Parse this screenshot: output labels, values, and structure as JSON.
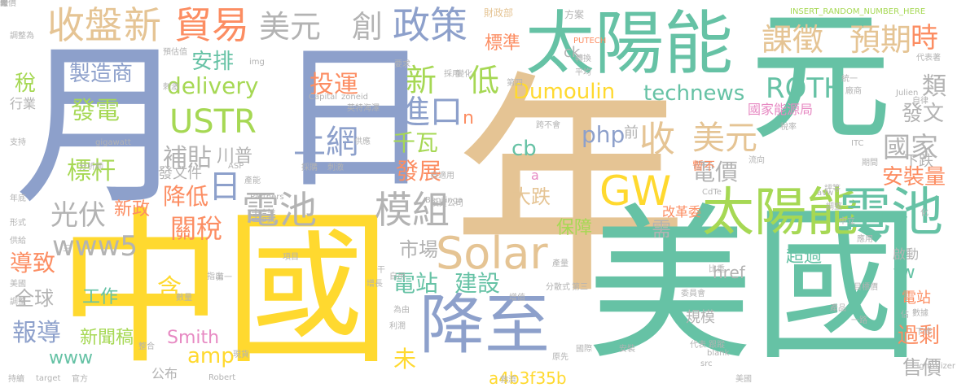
{
  "palette": {
    "blue": "#8DA0CB",
    "green": "#66C2A5",
    "yellow": "#FFD92F",
    "tan": "#E5C494",
    "pink": "#E78AC3",
    "orange": "#FC8D62",
    "lime": "#A6D854",
    "gray": "#B3B3B3"
  },
  "words": [
    {
      "text": "年",
      "color": "tan"
    },
    {
      "text": "中國",
      "color": "yellow"
    },
    {
      "text": "美國",
      "color": "green"
    },
    {
      "text": "月",
      "color": "blue"
    },
    {
      "text": "日",
      "color": "blue"
    },
    {
      "text": "元",
      "color": "green"
    },
    {
      "text": "太陽能",
      "color": "green"
    },
    {
      "text": "降至",
      "color": "blue"
    },
    {
      "text": "太陽能",
      "color": "lime"
    },
    {
      "text": "電池",
      "color": "green"
    },
    {
      "text": "Solar",
      "color": "tan"
    },
    {
      "text": "GW",
      "color": "yellow"
    },
    {
      "text": "收盤",
      "color": "tan"
    },
    {
      "text": "新",
      "color": "tan"
    },
    {
      "text": "貿易",
      "color": "orange"
    },
    {
      "text": "美元",
      "color": "gray"
    },
    {
      "text": "創",
      "color": "gray"
    },
    {
      "text": "政策",
      "color": "blue"
    },
    {
      "text": "課徵",
      "color": "tan"
    },
    {
      "text": "預期",
      "color": "tan"
    },
    {
      "text": "時",
      "color": "orange"
    },
    {
      "text": "電池",
      "color": "gray"
    },
    {
      "text": "模組",
      "color": "gray"
    },
    {
      "text": "日",
      "color": "blue"
    },
    {
      "text": "上網",
      "color": "blue"
    },
    {
      "text": "USTR",
      "color": "lime"
    },
    {
      "text": "光伏",
      "color": "gray"
    },
    {
      "text": "收",
      "color": "tan"
    },
    {
      "text": "美元",
      "color": "tan"
    },
    {
      "text": "進口",
      "color": "blue"
    },
    {
      "text": "新",
      "color": "lime"
    },
    {
      "text": "低",
      "color": "lime"
    },
    {
      "text": "ROTH",
      "color": "green"
    },
    {
      "text": "國家",
      "color": "gray"
    },
    {
      "text": "www5",
      "color": "gray"
    },
    {
      "text": "關稅",
      "color": "orange"
    },
    {
      "text": "發電",
      "color": "lime"
    },
    {
      "text": "標杆",
      "color": "lime"
    },
    {
      "text": "補貼",
      "color": "gray"
    },
    {
      "text": "川普",
      "color": "gray"
    },
    {
      "text": "製造商",
      "color": "blue"
    },
    {
      "text": "安排",
      "color": "green"
    },
    {
      "text": "delivery",
      "color": "lime"
    },
    {
      "text": "投運",
      "color": "orange"
    },
    {
      "text": "Dumoulin",
      "color": "yellow"
    },
    {
      "text": "technews",
      "color": "green"
    },
    {
      "text": "php",
      "color": "blue"
    },
    {
      "text": "cb",
      "color": "green"
    },
    {
      "text": "前",
      "color": "gray"
    },
    {
      "text": "千瓦",
      "color": "lime"
    },
    {
      "text": "發展",
      "color": "orange"
    },
    {
      "text": "電價",
      "color": "gray"
    },
    {
      "text": "暫不",
      "color": "orange"
    },
    {
      "text": "國家能源局",
      "color": "pink"
    },
    {
      "text": "發文",
      "color": "gray"
    },
    {
      "text": "下跌",
      "color": "gray"
    },
    {
      "text": "安裝量",
      "color": "orange"
    },
    {
      "text": "類",
      "color": "gray"
    },
    {
      "text": "標準",
      "color": "orange"
    },
    {
      "text": "ck",
      "color": "gray"
    },
    {
      "text": "稅",
      "color": "lime"
    },
    {
      "text": "行業",
      "color": "gray"
    },
    {
      "text": "降低",
      "color": "orange"
    },
    {
      "text": "新政",
      "color": "orange"
    },
    {
      "text": "發文件",
      "color": "gray"
    },
    {
      "text": "建議",
      "color": "gray"
    },
    {
      "text": "市場",
      "color": "gray"
    },
    {
      "text": "電站",
      "color": "green"
    },
    {
      "text": "建設",
      "color": "green"
    },
    {
      "text": "tw",
      "color": "green"
    },
    {
      "text": "導致",
      "color": "orange"
    },
    {
      "text": "全球",
      "color": "gray"
    },
    {
      "text": "含",
      "color": "yellow"
    },
    {
      "text": "工作",
      "color": "green"
    },
    {
      "text": "報導",
      "color": "blue"
    },
    {
      "text": "新聞稿",
      "color": "lime"
    },
    {
      "text": "www",
      "color": "green"
    },
    {
      "text": "Smith",
      "color": "pink"
    },
    {
      "text": "amp",
      "color": "yellow"
    },
    {
      "text": "公布",
      "color": "gray"
    },
    {
      "text": "未",
      "color": "yellow"
    },
    {
      "text": "a4b3f35b",
      "color": "yellow"
    },
    {
      "text": "過剩",
      "color": "orange"
    },
    {
      "text": "售價",
      "color": "gray"
    },
    {
      "text": "大跌",
      "color": "tan"
    },
    {
      "text": "保障",
      "color": "lime"
    },
    {
      "text": "超過",
      "color": "green"
    },
    {
      "text": "href",
      "color": "gray"
    },
    {
      "text": "啟動",
      "color": "gray"
    },
    {
      "text": "電站",
      "color": "orange"
    },
    {
      "text": "規模",
      "color": "gray"
    },
    {
      "text": "改革委",
      "color": "orange"
    },
    {
      "text": "需",
      "color": "gray"
    },
    {
      "text": "財政部",
      "color": "tan"
    },
    {
      "text": "INSERT_RANDOM_NUMBER_HERE",
      "color": "lime"
    },
    {
      "text": "n",
      "color": "orange"
    },
    {
      "text": "a",
      "color": "pink"
    },
    {
      "text": "PUTECH",
      "color": "orange"
    },
    {
      "text": "方案",
      "color": "gray"
    },
    {
      "text": "img",
      "color": "gray"
    },
    {
      "text": "zoneid",
      "color": "gray"
    },
    {
      "text": "Capital",
      "color": "gray"
    },
    {
      "text": "gigawatt",
      "color": "gray"
    },
    {
      "text": "ASP",
      "color": "gray"
    },
    {
      "text": "Partners",
      "color": "gray"
    },
    {
      "text": "Benzinga",
      "color": "gray"
    },
    {
      "text": "CdTe",
      "color": "gray"
    },
    {
      "text": "ITC",
      "color": "gray"
    },
    {
      "text": "Julien",
      "color": "gray"
    },
    {
      "text": "Robert",
      "color": "gray"
    },
    {
      "text": "target",
      "color": "gray"
    },
    {
      "text": "Lightmizer",
      "color": "gray"
    },
    {
      "text": "blank",
      "color": "gray"
    },
    {
      "text": "src",
      "color": "gray"
    },
    {
      "text": "avw",
      "color": "gray"
    },
    {
      "text": "分析師",
      "color": "gray"
    },
    {
      "text": "形式",
      "color": "gray"
    },
    {
      "text": "年底",
      "color": "gray"
    },
    {
      "text": "供給",
      "color": "gray"
    },
    {
      "text": "調整",
      "color": "gray"
    },
    {
      "text": "項目",
      "color": "gray"
    },
    {
      "text": "指出",
      "color": "gray"
    },
    {
      "text": "第一",
      "color": "gray"
    },
    {
      "text": "投資公司",
      "color": "gray"
    },
    {
      "text": "委員會",
      "color": "gray"
    },
    {
      "text": "分散式",
      "color": "gray"
    },
    {
      "text": "第三",
      "color": "gray"
    },
    {
      "text": "增長",
      "color": "gray"
    },
    {
      "text": "產量",
      "color": "gray"
    },
    {
      "text": "比重",
      "color": "gray"
    },
    {
      "text": "代表著",
      "color": "gray"
    },
    {
      "text": "支持",
      "color": "gray"
    },
    {
      "text": "供應",
      "color": "gray"
    },
    {
      "text": "採購",
      "color": "gray"
    },
    {
      "text": "刺激",
      "color": "gray"
    },
    {
      "text": "自用",
      "color": "gray"
    },
    {
      "text": "為由",
      "color": "gray"
    },
    {
      "text": "利潤",
      "color": "gray"
    },
    {
      "text": "原先",
      "color": "gray"
    },
    {
      "text": "救濟",
      "color": "gray"
    },
    {
      "text": "國際",
      "color": "gray"
    },
    {
      "text": "安裝",
      "color": "gray"
    },
    {
      "text": "代表",
      "color": "gray"
    },
    {
      "text": "跟蹤",
      "color": "gray"
    },
    {
      "text": "產品",
      "color": "gray"
    },
    {
      "text": "調整",
      "color": "gray"
    },
    {
      "text": "評等",
      "color": "gray"
    },
    {
      "text": "自律",
      "color": "gray"
    },
    {
      "text": "美國",
      "color": "gray"
    },
    {
      "text": "下修",
      "color": "gray"
    },
    {
      "text": "持續",
      "color": "gray"
    },
    {
      "text": "官方",
      "color": "gray"
    },
    {
      "text": "現貨",
      "color": "gray"
    },
    {
      "text": "刺激",
      "color": "gray"
    },
    {
      "text": "轉換",
      "color": "gray"
    },
    {
      "text": "平均",
      "color": "gray"
    },
    {
      "text": "期間",
      "color": "gray"
    },
    {
      "text": "稅率",
      "color": "gray"
    },
    {
      "text": "統一",
      "color": "gray"
    },
    {
      "text": "廠商",
      "color": "gray"
    },
    {
      "text": "整合",
      "color": "gray"
    },
    {
      "text": "預估值",
      "color": "gray"
    },
    {
      "text": "要求",
      "color": "gray"
    },
    {
      "text": "採用",
      "color": "gray"
    },
    {
      "text": "變化",
      "color": "gray"
    },
    {
      "text": "跨不會",
      "color": "gray"
    },
    {
      "text": "自適用",
      "color": "gray"
    },
    {
      "text": "流向",
      "color": "gray"
    },
    {
      "text": "英特海澤",
      "color": "gray"
    },
    {
      "text": "第四",
      "color": "gray"
    },
    {
      "text": "中立",
      "color": "gray"
    },
    {
      "text": "一路",
      "color": "gray"
    },
    {
      "text": "應用",
      "color": "gray"
    },
    {
      "text": "數據",
      "color": "gray"
    },
    {
      "text": "美國",
      "color": "gray"
    },
    {
      "text": "數量",
      "color": "gray"
    },
    {
      "text": "目標價",
      "color": "gray"
    },
    {
      "text": "增值",
      "color": "gray"
    },
    {
      "text": "調整為",
      "color": "gray"
    },
    {
      "text": "產能",
      "color": "gray"
    },
    {
      "text": "三",
      "color": "gray"
    },
    {
      "text": "干",
      "color": "gray"
    },
    {
      "text": "佔",
      "color": "gray"
    },
    {
      "text": "化",
      "color": "gray"
    },
    {
      "text": "聚",
      "color": "gray"
    },
    {
      "text": "跨",
      "color": "gray"
    },
    {
      "text": "強",
      "color": "gray"
    },
    {
      "text": "報價",
      "color": "gray"
    }
  ]
}
